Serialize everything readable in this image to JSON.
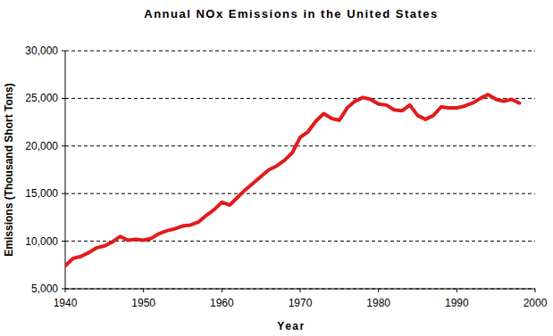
{
  "chart_data": {
    "type": "line",
    "title": "Annual NOx Emissions in the United States",
    "x_label": "Year",
    "y_label": "Emissions (Thousand Short Tons)",
    "x": [
      1940,
      1941,
      1942,
      1943,
      1944,
      1945,
      1946,
      1947,
      1948,
      1949,
      1950,
      1951,
      1952,
      1953,
      1954,
      1955,
      1956,
      1957,
      1958,
      1959,
      1960,
      1961,
      1962,
      1963,
      1964,
      1965,
      1966,
      1967,
      1968,
      1969,
      1970,
      1971,
      1972,
      1973,
      1974,
      1975,
      1976,
      1977,
      1978,
      1979,
      1980,
      1981,
      1982,
      1983,
      1984,
      1985,
      1986,
      1987,
      1988,
      1989,
      1990,
      1991,
      1992,
      1993,
      1994,
      1995,
      1996,
      1997,
      1998
    ],
    "values": [
      7400,
      8200,
      8400,
      8800,
      9300,
      9500,
      9900,
      10500,
      10100,
      10200,
      10100,
      10300,
      10800,
      11100,
      11300,
      11600,
      11700,
      12000,
      12700,
      13300,
      14100,
      13800,
      14600,
      15400,
      16100,
      16800,
      17500,
      17900,
      18500,
      19300,
      20900,
      21500,
      22600,
      23400,
      22900,
      22700,
      24000,
      24700,
      25100,
      24900,
      24400,
      24300,
      23800,
      23700,
      24300,
      23200,
      22800,
      23200,
      24100,
      24000,
      24000,
      24200,
      24500,
      25000,
      25400,
      24900,
      24700,
      24900,
      24500
    ],
    "color": "#e31a1c",
    "xlim": [
      1940,
      2000
    ],
    "xticks": [
      1940,
      1950,
      1960,
      1970,
      1980,
      1990,
      2000
    ],
    "ylim": [
      5000,
      30000
    ],
    "yticks": [
      {
        "value": 5000,
        "label": "5,000"
      },
      {
        "value": 10000,
        "label": "10,000"
      },
      {
        "value": 15000,
        "label": "15,000"
      },
      {
        "value": 20000,
        "label": "20,000"
      },
      {
        "value": 25000,
        "label": "25,000"
      },
      {
        "value": 30000,
        "label": "30,000"
      }
    ],
    "grid": true
  }
}
